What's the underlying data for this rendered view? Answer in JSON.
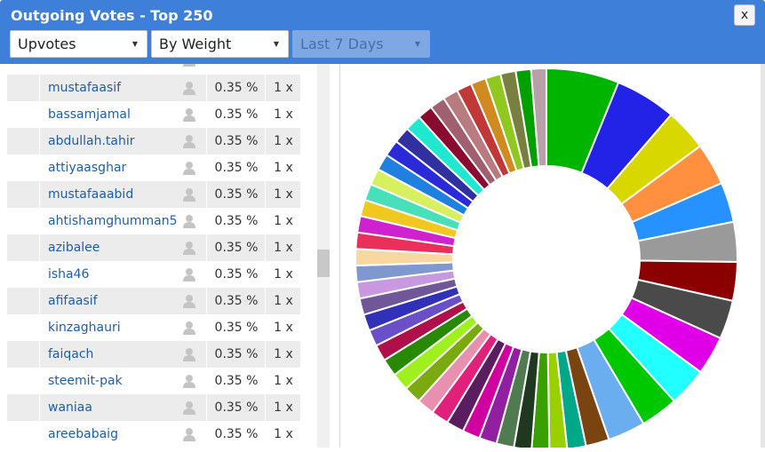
{
  "window": {
    "title": "Outgoing Votes - Top 250",
    "close_label": "x"
  },
  "filters": {
    "vote_type": {
      "selected": "Upvotes"
    },
    "sort": {
      "selected": "By Weight"
    },
    "period": {
      "selected": "Last 7 Days"
    }
  },
  "rows": [
    {
      "name": "mustafaasif",
      "pct": "0.35 %",
      "count": "1 x"
    },
    {
      "name": "bassamjamal",
      "pct": "0.35 %",
      "count": "1 x"
    },
    {
      "name": "abdullah.tahir",
      "pct": "0.35 %",
      "count": "1 x"
    },
    {
      "name": "attiyaasghar",
      "pct": "0.35 %",
      "count": "1 x"
    },
    {
      "name": "mustafaaabid",
      "pct": "0.35 %",
      "count": "1 x"
    },
    {
      "name": "ahtishamghumman5",
      "pct": "0.35 %",
      "count": "1 x"
    },
    {
      "name": "azibalee",
      "pct": "0.35 %",
      "count": "1 x"
    },
    {
      "name": "isha46",
      "pct": "0.35 %",
      "count": "1 x"
    },
    {
      "name": "afifaasif",
      "pct": "0.35 %",
      "count": "1 x"
    },
    {
      "name": "kinzaghauri",
      "pct": "0.35 %",
      "count": "1 x"
    },
    {
      "name": "faiqach",
      "pct": "0.35 %",
      "count": "1 x"
    },
    {
      "name": "steemit-pak",
      "pct": "0.35 %",
      "count": "1 x"
    },
    {
      "name": "waniaa",
      "pct": "0.35 %",
      "count": "1 x"
    },
    {
      "name": "areebabaig",
      "pct": "0.35 %",
      "count": "1 x"
    }
  ],
  "chart_data": {
    "type": "pie",
    "donut": true,
    "slice_colors": [
      "#00b400",
      "#2323e8",
      "#d8d800",
      "#ff9040",
      "#2592ff",
      "#9a9a9a",
      "#8b0000",
      "#4a4a4a",
      "#e000e8",
      "#22ffff",
      "#00c800",
      "#6aaef0",
      "#7a4410",
      "#00a88a",
      "#9ad000",
      "#38a000",
      "#203820",
      "#507a50",
      "#9020a0",
      "#d000a0",
      "#5a1e60",
      "#e0207a",
      "#e890b0",
      "#7aaa10",
      "#a0f020",
      "#288a00",
      "#b0104a",
      "#6a50c8",
      "#3030b8",
      "#705898",
      "#c898e0",
      "#8098d0",
      "#f8d8a0",
      "#e8305a",
      "#d020d0",
      "#f0c820",
      "#48e0b8",
      "#d8f060",
      "#2080e0",
      "#2a2ad8",
      "#3030a0",
      "#20e8d0",
      "#8a0a30",
      "#a06070",
      "#b87c80",
      "#c03838",
      "#d08a20",
      "#90c820",
      "#788040",
      "#00a000",
      "#b8a0a8"
    ],
    "values": [
      6.2,
      5.2,
      3.6,
      3.6,
      3.4,
      3.4,
      3.3,
      3.3,
      3.3,
      3.3,
      3.2,
      3.2,
      2.0,
      1.6,
      1.5,
      1.5,
      1.5,
      1.5,
      1.5,
      1.5,
      1.5,
      1.5,
      1.5,
      1.5,
      1.5,
      1.5,
      1.4,
      1.4,
      1.4,
      1.4,
      1.4,
      1.4,
      1.4,
      1.4,
      1.4,
      1.4,
      1.4,
      1.4,
      1.4,
      1.4,
      1.4,
      1.4,
      1.3,
      1.3,
      1.3,
      1.3,
      1.3,
      1.3,
      1.3,
      1.3,
      1.3
    ]
  }
}
